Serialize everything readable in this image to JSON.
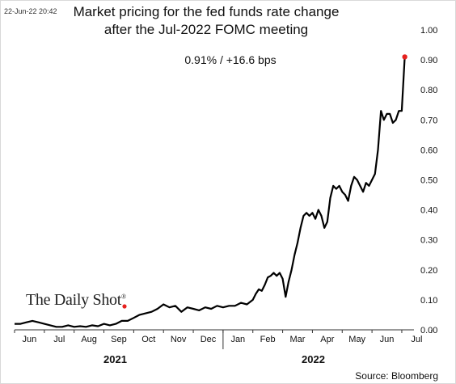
{
  "timestamp": "22-Jun-22 20:42",
  "logo_text": "The Daily Shot",
  "source": "Source: Bloomberg",
  "chart_data": {
    "type": "line",
    "title_line1": "Market pricing for the fed funds rate change",
    "title_line2": "after the Jul-2022 FOMC meeting",
    "annotation": "0.91%  /  +16.6 bps",
    "ylim": [
      0,
      1.0
    ],
    "yticks": [
      "0.00",
      "0.10",
      "0.20",
      "0.30",
      "0.40",
      "0.50",
      "0.60",
      "0.70",
      "0.80",
      "0.90",
      "1.00"
    ],
    "month_labels": [
      "Jun",
      "Jul",
      "Aug",
      "Sep",
      "Oct",
      "Nov",
      "Dec",
      "Jan",
      "Feb",
      "Mar",
      "Apr",
      "May",
      "Jun",
      "Jul"
    ],
    "year_labels": [
      "2021",
      "2022"
    ],
    "x": [
      0,
      0.2,
      0.4,
      0.6,
      0.8,
      1.0,
      1.2,
      1.4,
      1.6,
      1.8,
      2.0,
      2.2,
      2.4,
      2.6,
      2.8,
      3.0,
      3.2,
      3.4,
      3.6,
      3.8,
      4.0,
      4.2,
      4.4,
      4.6,
      4.8,
      5.0,
      5.2,
      5.4,
      5.6,
      5.8,
      6.0,
      6.2,
      6.4,
      6.6,
      6.8,
      7.0,
      7.2,
      7.4,
      7.6,
      7.8,
      8.0,
      8.1,
      8.2,
      8.3,
      8.4,
      8.5,
      8.6,
      8.7,
      8.8,
      8.9,
      9.0,
      9.1,
      9.2,
      9.3,
      9.4,
      9.5,
      9.6,
      9.7,
      9.8,
      9.9,
      10.0,
      10.1,
      10.2,
      10.3,
      10.4,
      10.5,
      10.6,
      10.7,
      10.8,
      10.9,
      11.0,
      11.1,
      11.2,
      11.3,
      11.4,
      11.5,
      11.6,
      11.7,
      11.8,
      11.9,
      12.0,
      12.1,
      12.2,
      12.3,
      12.4,
      12.5,
      12.6,
      12.7,
      12.8,
      12.9,
      13.0,
      13.1
    ],
    "y": [
      0.02,
      0.02,
      0.025,
      0.03,
      0.025,
      0.02,
      0.015,
      0.01,
      0.01,
      0.015,
      0.01,
      0.012,
      0.01,
      0.015,
      0.012,
      0.02,
      0.015,
      0.02,
      0.03,
      0.03,
      0.04,
      0.05,
      0.055,
      0.06,
      0.07,
      0.085,
      0.075,
      0.08,
      0.06,
      0.075,
      0.07,
      0.065,
      0.075,
      0.07,
      0.08,
      0.075,
      0.08,
      0.08,
      0.09,
      0.085,
      0.1,
      0.12,
      0.135,
      0.13,
      0.15,
      0.175,
      0.18,
      0.19,
      0.18,
      0.19,
      0.17,
      0.11,
      0.16,
      0.2,
      0.25,
      0.29,
      0.34,
      0.38,
      0.39,
      0.38,
      0.39,
      0.37,
      0.4,
      0.38,
      0.34,
      0.36,
      0.44,
      0.48,
      0.47,
      0.48,
      0.46,
      0.45,
      0.43,
      0.48,
      0.51,
      0.5,
      0.48,
      0.46,
      0.49,
      0.48,
      0.5,
      0.52,
      0.6,
      0.73,
      0.7,
      0.72,
      0.72,
      0.69,
      0.7,
      0.73,
      0.73,
      0.91
    ],
    "last_value": 0.91,
    "line_color": "#000000",
    "endpoint_color": "#e6211e"
  }
}
